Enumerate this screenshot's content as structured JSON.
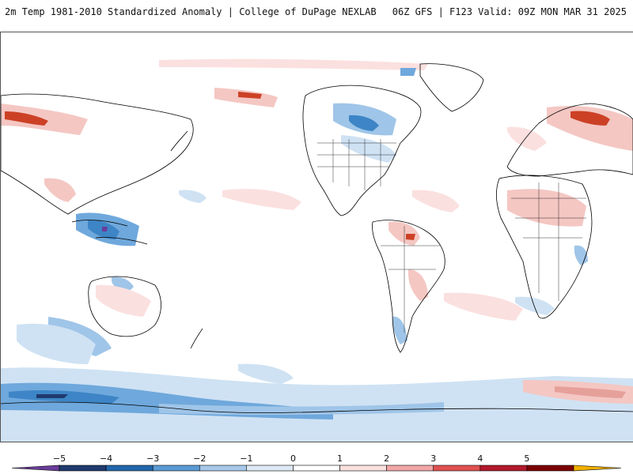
{
  "header": {
    "title_left": "2m Temp 1981-2010 Standardized Anomaly | College of DuPage NEXLAB",
    "title_right": "06Z GFS | F123 Valid: 09Z MON MAR 31 2025"
  },
  "map": {
    "projection": "global equirectangular",
    "product": "2m temperature standardized anomaly",
    "land_outline_color": "#000000",
    "ocean_color": "#ffffff"
  },
  "colorbar": {
    "ticks": [
      "−5",
      "−4",
      "−3",
      "−2",
      "−1",
      "0",
      "1",
      "2",
      "3",
      "4",
      "5"
    ],
    "colors": [
      "#6a3d9a",
      "#1f3a6e",
      "#2166ac",
      "#5a9bd5",
      "#a6c8ea",
      "#dde9f5",
      "#ffffff",
      "#fbe0e0",
      "#f2a6a6",
      "#e05050",
      "#b2182b",
      "#7a0000",
      "#f0b000"
    ]
  }
}
